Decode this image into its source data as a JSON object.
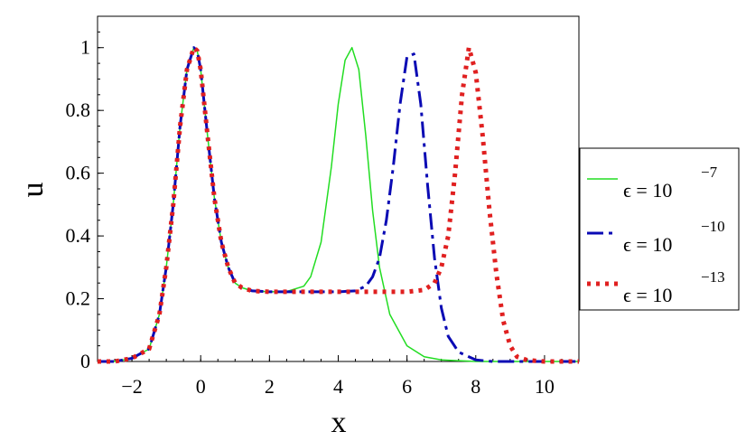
{
  "chart_data": {
    "type": "line",
    "title": "",
    "xlabel": "x",
    "ylabel": "u",
    "xlim": [
      -3,
      11
    ],
    "ylim": [
      0,
      1.1
    ],
    "xticks": [
      -2,
      0,
      2,
      4,
      6,
      8,
      10
    ],
    "yticks": [
      0,
      0.2,
      0.4,
      0.6,
      0.8,
      1
    ],
    "xtick_labels": [
      "−2",
      "0",
      "2",
      "4",
      "6",
      "8",
      "10"
    ],
    "ytick_labels": [
      "0",
      "0.2",
      "0.4",
      "0.6",
      "0.8",
      "1"
    ],
    "grid": false,
    "legend_position": "right",
    "series": [
      {
        "name": "ϵ = 10",
        "exponent": "−7",
        "color": "#22dd22",
        "style": "solid",
        "x": [
          -3,
          -2.5,
          -2,
          -1.5,
          -1.2,
          -1,
          -0.8,
          -0.6,
          -0.4,
          -0.2,
          -0.1,
          0,
          0.2,
          0.4,
          0.6,
          0.8,
          1,
          1.2,
          1.5,
          2,
          2.5,
          3,
          3.2,
          3.5,
          3.8,
          4,
          4.2,
          4.4,
          4.6,
          4.8,
          5,
          5.2,
          5.5,
          6,
          6.5,
          7,
          8,
          9,
          10,
          11
        ],
        "y": [
          0,
          0,
          0.01,
          0.04,
          0.15,
          0.3,
          0.5,
          0.75,
          0.93,
          1,
          0.99,
          0.93,
          0.72,
          0.52,
          0.38,
          0.3,
          0.25,
          0.235,
          0.225,
          0.222,
          0.223,
          0.24,
          0.27,
          0.38,
          0.62,
          0.82,
          0.96,
          1,
          0.93,
          0.72,
          0.48,
          0.3,
          0.15,
          0.05,
          0.015,
          0.005,
          0,
          0,
          0,
          0
        ]
      },
      {
        "name": "ϵ = 10",
        "exponent": "−10",
        "color": "#0a0ab4",
        "style": "dashed",
        "x": [
          -3,
          -2.5,
          -2,
          -1.5,
          -1.2,
          -1,
          -0.8,
          -0.6,
          -0.4,
          -0.2,
          -0.1,
          0,
          0.2,
          0.4,
          0.6,
          0.8,
          1,
          1.2,
          1.5,
          2,
          3,
          4,
          4.5,
          4.8,
          5,
          5.2,
          5.4,
          5.6,
          5.8,
          6,
          6.2,
          6.4,
          6.6,
          6.8,
          7,
          7.2,
          7.5,
          8,
          8.5,
          9,
          10,
          11
        ],
        "y": [
          0,
          0,
          0.01,
          0.04,
          0.15,
          0.3,
          0.5,
          0.75,
          0.93,
          1,
          0.99,
          0.93,
          0.72,
          0.52,
          0.38,
          0.3,
          0.25,
          0.235,
          0.225,
          0.222,
          0.222,
          0.222,
          0.225,
          0.24,
          0.27,
          0.33,
          0.45,
          0.62,
          0.82,
          0.97,
          0.98,
          0.82,
          0.56,
          0.33,
          0.17,
          0.08,
          0.03,
          0.005,
          0,
          0,
          0,
          0
        ]
      },
      {
        "name": "ϵ = 10",
        "exponent": "−13",
        "color": "#e02020",
        "style": "dotted",
        "x": [
          -3,
          -2.5,
          -2,
          -1.5,
          -1.2,
          -1,
          -0.8,
          -0.6,
          -0.4,
          -0.2,
          -0.1,
          0,
          0.2,
          0.4,
          0.6,
          0.8,
          1,
          1.2,
          1.5,
          2,
          3,
          4,
          5,
          6,
          6.5,
          6.8,
          7,
          7.2,
          7.4,
          7.6,
          7.8,
          8,
          8.2,
          8.4,
          8.6,
          8.8,
          9,
          9.2,
          9.5,
          10,
          11
        ],
        "y": [
          0,
          0,
          0.01,
          0.04,
          0.15,
          0.3,
          0.5,
          0.75,
          0.93,
          1,
          0.99,
          0.93,
          0.72,
          0.52,
          0.38,
          0.3,
          0.25,
          0.235,
          0.225,
          0.222,
          0.222,
          0.222,
          0.222,
          0.222,
          0.228,
          0.25,
          0.3,
          0.4,
          0.6,
          0.85,
          1,
          0.92,
          0.72,
          0.48,
          0.28,
          0.13,
          0.05,
          0.015,
          0.004,
          0,
          0
        ]
      }
    ]
  }
}
